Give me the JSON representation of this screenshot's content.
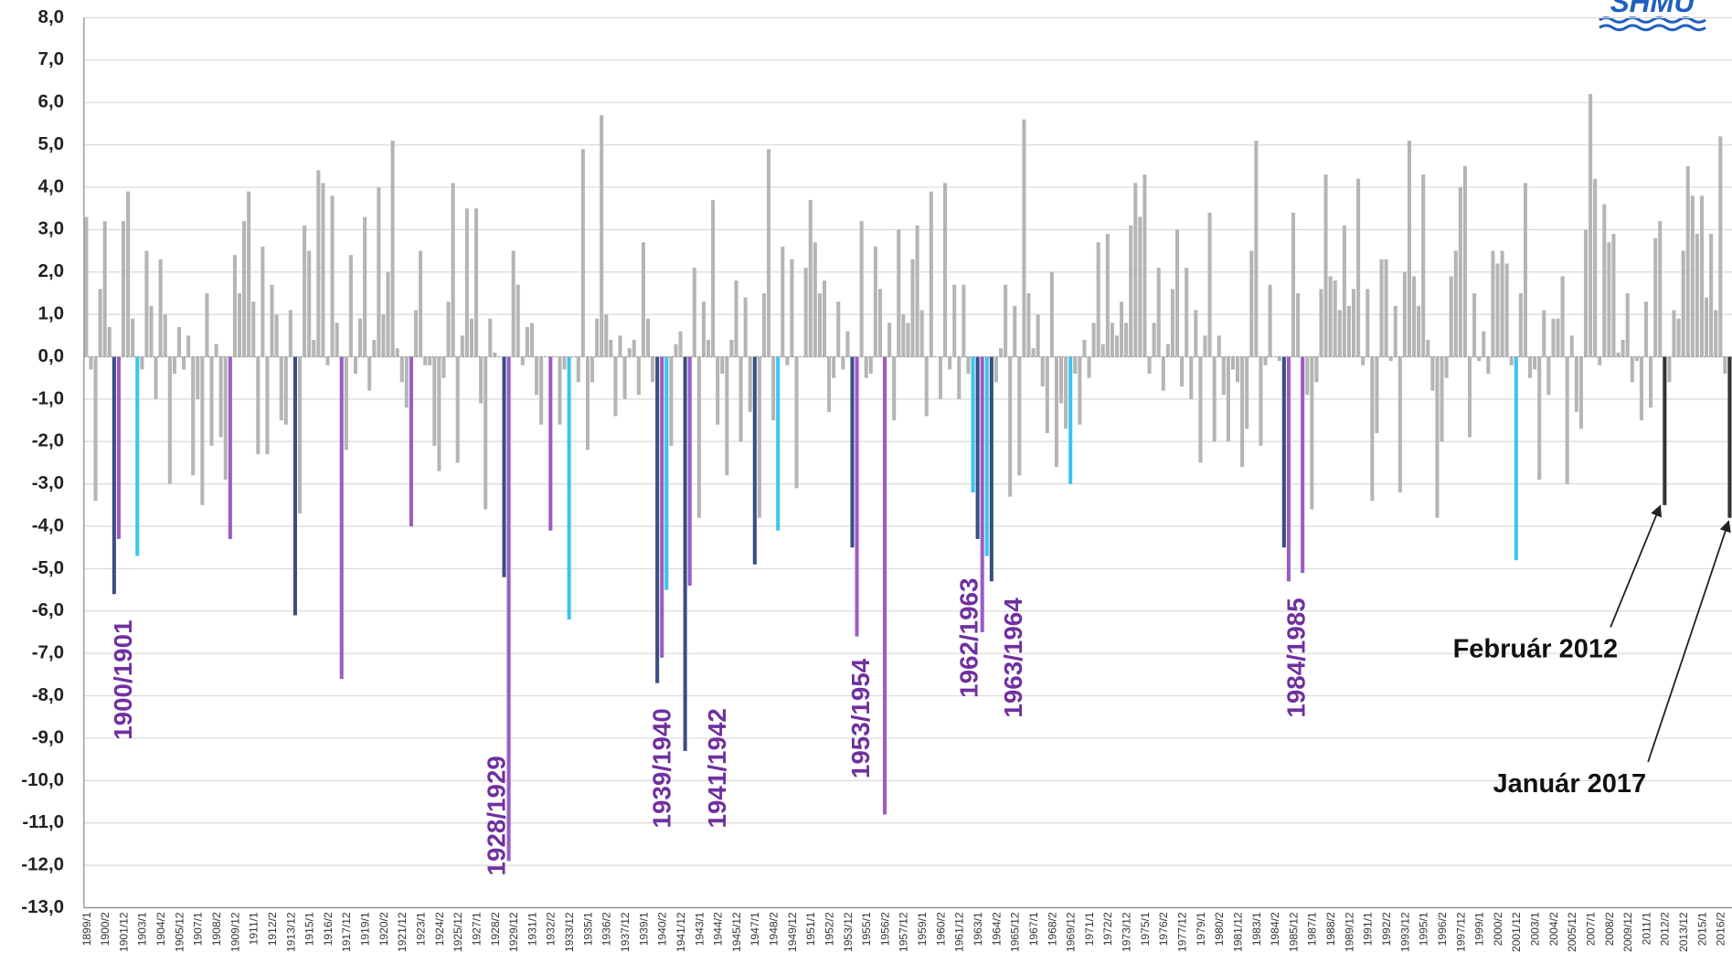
{
  "chart_data": {
    "type": "bar",
    "logo": "SHMÚ",
    "categories": [
      "1899/1",
      null,
      null,
      null,
      "1900/2",
      null,
      null,
      null,
      "1901/12",
      null,
      null,
      null,
      "1903/1",
      null,
      null,
      null,
      "1904/2",
      null,
      null,
      null,
      "1905/12",
      null,
      null,
      null,
      "1907/1",
      null,
      null,
      null,
      "1908/2",
      null,
      null,
      null,
      "1909/12",
      null,
      null,
      null,
      "1911/1",
      null,
      null,
      null,
      "1912/2",
      null,
      null,
      null,
      "1913/12",
      null,
      null,
      null,
      "1915/1",
      null,
      null,
      null,
      "1916/2",
      null,
      null,
      null,
      "1917/12",
      null,
      null,
      null,
      "1919/1",
      null,
      null,
      null,
      "1920/2",
      null,
      null,
      null,
      "1921/12",
      null,
      null,
      null,
      "1923/1",
      null,
      null,
      null,
      "1924/2",
      null,
      null,
      null,
      "1925/12",
      null,
      null,
      null,
      "1927/1",
      null,
      null,
      null,
      "1928/2",
      null,
      null,
      null,
      "1929/12",
      null,
      null,
      null,
      "1931/1",
      null,
      null,
      null,
      "1932/2",
      null,
      null,
      null,
      "1933/12",
      null,
      null,
      null,
      "1935/1",
      null,
      null,
      null,
      "1936/2",
      null,
      null,
      null,
      "1937/12",
      null,
      null,
      null,
      "1939/1",
      null,
      null,
      null,
      "1940/2",
      null,
      null,
      null,
      "1941/12",
      null,
      null,
      null,
      "1943/1",
      null,
      null,
      null,
      "1944/2",
      null,
      null,
      null,
      "1945/12",
      null,
      null,
      null,
      "1947/1",
      null,
      null,
      null,
      "1948/2",
      null,
      null,
      null,
      "1949/12",
      null,
      null,
      null,
      "1951/1",
      null,
      null,
      null,
      "1952/2",
      null,
      null,
      null,
      "1953/12",
      null,
      null,
      null,
      "1955/1",
      null,
      null,
      null,
      "1956/2",
      null,
      null,
      null,
      "1957/12",
      null,
      null,
      null,
      "1959/1",
      null,
      null,
      null,
      "1960/2",
      null,
      null,
      null,
      "1961/12",
      null,
      null,
      null,
      "1963/1",
      null,
      null,
      null,
      "1964/2",
      null,
      null,
      null,
      "1965/12",
      null,
      null,
      null,
      "1967/1",
      null,
      null,
      null,
      "1968/2",
      null,
      null,
      null,
      "1969/12",
      null,
      null,
      null,
      "1971/1",
      null,
      null,
      null,
      "1972/2",
      null,
      null,
      null,
      "1973/12",
      null,
      null,
      null,
      "1975/1",
      null,
      null,
      null,
      "1976/2",
      null,
      null,
      null,
      "1977/12",
      null,
      null,
      null,
      "1979/1",
      null,
      null,
      null,
      "1980/2",
      null,
      null,
      null,
      "1981/12",
      null,
      null,
      null,
      "1983/1",
      null,
      null,
      null,
      "1984/2",
      null,
      null,
      null,
      "1985/12",
      null,
      null,
      null,
      "1987/1",
      null,
      null,
      null,
      "1988/2",
      null,
      null,
      null,
      "1989/12",
      null,
      null,
      null,
      "1991/1",
      null,
      null,
      null,
      "1992/2",
      null,
      null,
      null,
      "1993/12",
      null,
      null,
      null,
      "1995/1",
      null,
      null,
      null,
      "1996/2",
      null,
      null,
      null,
      "1997/12",
      null,
      null,
      null,
      "1999/1",
      null,
      null,
      null,
      "2000/2",
      null,
      null,
      null,
      "2001/12",
      null,
      null,
      null,
      "2003/1",
      null,
      null,
      null,
      "2004/2",
      null,
      null,
      null,
      "2005/12",
      null,
      null,
      null,
      "2007/1",
      null,
      null,
      null,
      "2008/2",
      null,
      null,
      null,
      "2009/12",
      null,
      null,
      null,
      "2011/1",
      null,
      null,
      null,
      "2012/2",
      null,
      null,
      null,
      "2013/12",
      null,
      null,
      null,
      "2015/1",
      null,
      null,
      null,
      "2016/2",
      null,
      null
    ],
    "values": [
      3.3,
      -0.3,
      -3.4,
      1.6,
      3.2,
      0.7,
      -5.6,
      -4.3,
      3.2,
      3.9,
      0.9,
      -4.7,
      -0.3,
      2.5,
      1.2,
      -1.0,
      2.3,
      1.0,
      -3.0,
      -0.4,
      0.7,
      -0.3,
      0.5,
      -2.8,
      -1.0,
      -3.5,
      1.5,
      -2.1,
      0.3,
      -1.9,
      -2.9,
      -4.3,
      2.4,
      1.5,
      3.2,
      3.9,
      1.3,
      -2.3,
      2.6,
      -2.3,
      1.7,
      1.0,
      -1.5,
      -1.6,
      1.1,
      -6.1,
      -3.7,
      3.1,
      2.5,
      0.4,
      4.4,
      4.1,
      -0.2,
      3.8,
      0.8,
      -7.6,
      -2.2,
      2.4,
      -0.4,
      0.9,
      3.3,
      -0.8,
      0.4,
      4.0,
      1.0,
      2.0,
      5.1,
      0.2,
      -0.6,
      -1.2,
      -4.0,
      1.1,
      2.5,
      -0.2,
      -0.2,
      -2.1,
      -2.7,
      -0.5,
      1.3,
      4.1,
      -2.5,
      0.5,
      3.5,
      0.9,
      3.5,
      -1.1,
      -3.6,
      0.9,
      0.1,
      0.0,
      -5.2,
      -11.9,
      2.5,
      1.7,
      -0.2,
      0.7,
      0.8,
      -0.9,
      -1.6,
      0.0,
      -4.1,
      0.0,
      -1.6,
      -0.3,
      -6.2,
      0.0,
      -0.6,
      4.9,
      -2.2,
      -0.6,
      0.9,
      5.7,
      1.0,
      0.4,
      -1.4,
      0.5,
      -1.0,
      0.2,
      0.4,
      -0.9,
      2.7,
      0.9,
      -0.6,
      -7.7,
      -7.1,
      -5.5,
      -2.1,
      0.3,
      0.6,
      -9.3,
      -5.4,
      2.1,
      -3.8,
      1.3,
      0.4,
      3.7,
      -1.6,
      -0.4,
      -2.8,
      0.4,
      1.8,
      -2.0,
      1.4,
      -1.3,
      -4.9,
      -3.8,
      1.5,
      4.9,
      -1.5,
      -4.1,
      2.6,
      -0.2,
      2.3,
      -3.1,
      0.0,
      2.1,
      3.7,
      2.7,
      1.5,
      1.8,
      -1.3,
      -0.5,
      1.3,
      -0.3,
      0.6,
      -4.5,
      -6.6,
      3.2,
      -0.5,
      -0.4,
      2.6,
      1.6,
      -10.8,
      0.8,
      -1.5,
      3.0,
      1.0,
      0.8,
      2.3,
      3.1,
      1.1,
      -1.4,
      3.9,
      0.0,
      -1.0,
      4.1,
      -0.3,
      1.7,
      -1.0,
      1.7,
      -0.4,
      -3.2,
      -4.3,
      -6.5,
      -4.7,
      -5.3,
      -0.6,
      0.2,
      1.7,
      -3.3,
      1.2,
      -2.8,
      5.6,
      1.5,
      0.2,
      1.0,
      -0.7,
      -1.8,
      2.0,
      -2.6,
      -1.1,
      -1.7,
      -3.0,
      -0.4,
      -1.6,
      0.4,
      -0.5,
      0.8,
      2.7,
      0.3,
      2.9,
      0.8,
      0.5,
      1.3,
      0.8,
      3.1,
      4.1,
      3.3,
      4.3,
      -0.4,
      0.8,
      2.1,
      -0.8,
      0.3,
      1.6,
      3.0,
      -0.7,
      2.1,
      -1.0,
      1.1,
      -2.5,
      0.5,
      3.4,
      -2.0,
      0.5,
      -0.9,
      -2.0,
      -0.3,
      -0.6,
      -2.6,
      -1.7,
      2.5,
      5.1,
      -2.1,
      -0.2,
      1.7,
      0.0,
      -0.1,
      -4.5,
      -5.3,
      3.4,
      1.5,
      -5.1,
      -0.9,
      -3.6,
      -0.6,
      1.6,
      4.3,
      1.9,
      1.8,
      1.1,
      3.1,
      1.2,
      1.6,
      4.2,
      -0.2,
      1.6,
      -3.4,
      -1.8,
      2.3,
      2.3,
      -0.1,
      1.2,
      -3.2,
      2.0,
      5.1,
      1.9,
      1.2,
      4.3,
      0.4,
      -0.8,
      -3.8,
      -2.0,
      -0.5,
      1.9,
      2.5,
      4.0,
      4.5,
      -1.9,
      1.5,
      -0.1,
      0.6,
      -0.4,
      2.5,
      2.2,
      2.5,
      2.2,
      -0.2,
      -4.8,
      1.5,
      4.1,
      -0.5,
      -0.3,
      -2.9,
      1.1,
      -0.9,
      0.9,
      0.9,
      1.9,
      -3.0,
      0.5,
      -1.3,
      -1.7,
      3.0,
      6.2,
      4.2,
      -0.2,
      3.6,
      2.7,
      2.9,
      0.1,
      0.4,
      1.5,
      -0.6,
      -0.1,
      -1.5,
      1.3,
      -1.2,
      2.8,
      3.2,
      -3.5,
      -0.6,
      1.1,
      0.9,
      2.5,
      4.5,
      3.8,
      2.9,
      3.8,
      1.4,
      2.9,
      1.1,
      5.2,
      -0.4,
      -3.8
    ],
    "color": "#b5b5b5",
    "bar_colors": {
      "6": "#3a4f82",
      "7": "#9a5cc6",
      "11": "#3dc3f0",
      "31": "#9a5cc6",
      "45": "#3a4f82",
      "55": "#9a5cc6",
      "70": "#9a5cc6",
      "90": "#3a4f82",
      "91": "#9a5cc6",
      "100": "#9a5cc6",
      "104": "#3dc3f0",
      "123": "#3a4f82",
      "124": "#9a5cc6",
      "125": "#3dc3f0",
      "129": "#3a4f82",
      "130": "#9a5cc6",
      "144": "#3a4f82",
      "149": "#3dc3f0",
      "165": "#3a4f82",
      "166": "#9a5cc6",
      "172": "#9a5cc6",
      "191": "#3dc3f0",
      "192": "#3a4f82",
      "193": "#9a5cc6",
      "194": "#3dc3f0",
      "195": "#3a4f82",
      "212": "#3dc3f0",
      "258": "#3a4f82",
      "259": "#9a5cc6",
      "262": "#9a5cc6",
      "308": "#3dc3f0",
      "340": "#333333",
      "354": "#333333"
    },
    "ylim": [
      -13,
      8
    ],
    "yticks": [
      {
        "value": -13,
        "label": "-13,0"
      },
      {
        "value": -12,
        "label": "-12,0"
      },
      {
        "value": -11,
        "label": "-11,0"
      },
      {
        "value": -10,
        "label": "-10,0"
      },
      {
        "value": -9,
        "label": "-9,0"
      },
      {
        "value": -8,
        "label": "-8,0"
      },
      {
        "value": -7,
        "label": "-7,0"
      },
      {
        "value": -6,
        "label": "-6,0"
      },
      {
        "value": -5,
        "label": "-5,0"
      },
      {
        "value": -4,
        "label": "-4,0"
      },
      {
        "value": -3,
        "label": "-3,0"
      },
      {
        "value": -2,
        "label": "-2,0"
      },
      {
        "value": -1,
        "label": "-1,0"
      },
      {
        "value": 0,
        "label": "0,0"
      },
      {
        "value": 1,
        "label": "1,0"
      },
      {
        "value": 2,
        "label": "2,0"
      },
      {
        "value": 3,
        "label": "3,0"
      },
      {
        "value": 4,
        "label": "4,0"
      },
      {
        "value": 5,
        "label": "5,0"
      },
      {
        "value": 6,
        "label": "6,0"
      },
      {
        "value": 7,
        "label": "7,0"
      },
      {
        "value": 8,
        "label": "8,0"
      }
    ],
    "grid": true,
    "annotations": [
      "1900/1901",
      "1928/1929",
      "1939/1940",
      "1941/1942",
      "1953/1954",
      "1962/1963",
      "1963/1964",
      "1984/1985"
    ],
    "callouts": [
      "Február 2012",
      "Január 2017"
    ]
  }
}
